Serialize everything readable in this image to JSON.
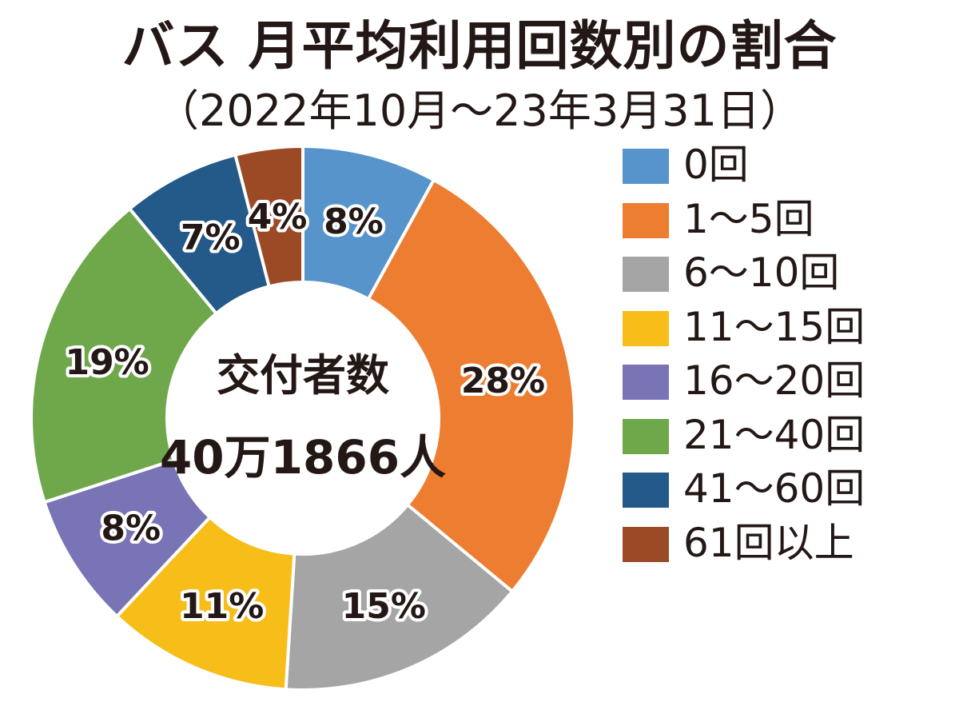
{
  "chart_data": {
    "type": "pie",
    "donut": true,
    "title": "バス 月平均利用回数別の割合",
    "subtitle": "（2022年10月～23年3月31日）",
    "center_label": {
      "line1": "交付者数",
      "line2": "40万1866人"
    },
    "categories": [
      "0回",
      "1～5回",
      "6～10回",
      "11～15回",
      "16～20回",
      "21～40回",
      "41～60回",
      "61回以上"
    ],
    "values": [
      8,
      28,
      15,
      11,
      8,
      19,
      7,
      4
    ],
    "labels": [
      "8%",
      "28%",
      "15%",
      "11%",
      "8%",
      "19%",
      "7%",
      "4%"
    ],
    "unit": "%",
    "colors": [
      "#5794CB",
      "#ED7D31",
      "#A5A5A5",
      "#F7BD18",
      "#7874B5",
      "#6FA84A",
      "#235A8A",
      "#9C4A26"
    ],
    "start": "top",
    "direction": "clockwise",
    "legend_position": "right"
  }
}
